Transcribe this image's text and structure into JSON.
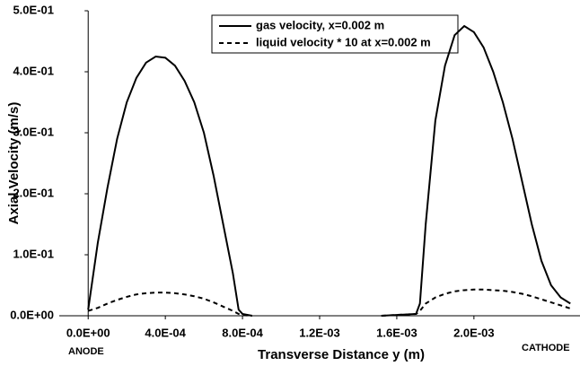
{
  "chart_data": {
    "type": "line",
    "xlabel": "Transverse Distance y (m)",
    "ylabel": "Axial Velocity (m/s)",
    "annotations": [
      {
        "text": "ANODE"
      },
      {
        "text": "CATHODE"
      }
    ],
    "legend": "upper center",
    "grid": false,
    "x": [
      0,
      5e-05,
      0.0001,
      0.00015,
      0.0002,
      0.00025,
      0.0003,
      0.00035,
      0.0004,
      0.00045,
      0.0005,
      0.00055,
      0.0006,
      0.00065,
      0.0007,
      0.00075,
      0.00078,
      0.0008,
      0.00085,
      0.0012,
      0.00152,
      0.0017,
      0.00172,
      0.00175,
      0.0018,
      0.00185,
      0.0019,
      0.00195,
      0.002,
      0.00205,
      0.0021,
      0.00215,
      0.0022,
      0.00225,
      0.0023,
      0.00235,
      0.0024,
      0.00245,
      0.0025
    ],
    "series": [
      {
        "name": "gas velocity, x=0.002 m",
        "color": "#000000",
        "line_style": "solid",
        "values": [
          0.01,
          0.12,
          0.21,
          0.29,
          0.35,
          0.39,
          0.415,
          0.425,
          0.423,
          0.41,
          0.385,
          0.35,
          0.3,
          0.23,
          0.15,
          0.07,
          0.01,
          0.003,
          0,
          null,
          0,
          0.003,
          0.02,
          0.15,
          0.32,
          0.41,
          0.46,
          0.475,
          0.465,
          0.44,
          0.4,
          0.35,
          0.29,
          0.22,
          0.15,
          0.09,
          0.05,
          0.03,
          0.02
        ]
      },
      {
        "name": "liquid velocity * 10 at x=0.002 m",
        "color": "#000000",
        "line_style": "dashed",
        "values": [
          0.008,
          0.013,
          0.02,
          0.026,
          0.031,
          0.035,
          0.037,
          0.038,
          0.038,
          0.037,
          0.035,
          0.032,
          0.028,
          0.022,
          0.015,
          0.008,
          0.003,
          0.001,
          0,
          null,
          0,
          0.003,
          0.008,
          0.02,
          0.03,
          0.036,
          0.04,
          0.042,
          0.043,
          0.043,
          0.042,
          0.041,
          0.039,
          0.036,
          0.032,
          0.027,
          0.022,
          0.017,
          0.012
        ]
      }
    ],
    "xlim": [
      -0.00015,
      0.00255
    ],
    "xticks": [
      {
        "value": 0,
        "label": "0.0E+00"
      },
      {
        "value": 0.0004,
        "label": "4.0E-04"
      },
      {
        "value": 0.0008,
        "label": "8.0E-04"
      },
      {
        "value": 0.0012,
        "label": "1.2E-03"
      },
      {
        "value": 0.0016,
        "label": "1.6E-03"
      },
      {
        "value": 0.002,
        "label": "2.0E-03"
      }
    ],
    "ylim": [
      0,
      0.5
    ],
    "yticks": [
      {
        "value": 0,
        "label": "0.0E+00"
      },
      {
        "value": 0.1,
        "label": "1.0E-01"
      },
      {
        "value": 0.2,
        "label": "2.0E-01"
      },
      {
        "value": 0.3,
        "label": "3.0E-01"
      },
      {
        "value": 0.4,
        "label": "4.0E-01"
      },
      {
        "value": 0.5,
        "label": "5.0E-01"
      }
    ]
  }
}
